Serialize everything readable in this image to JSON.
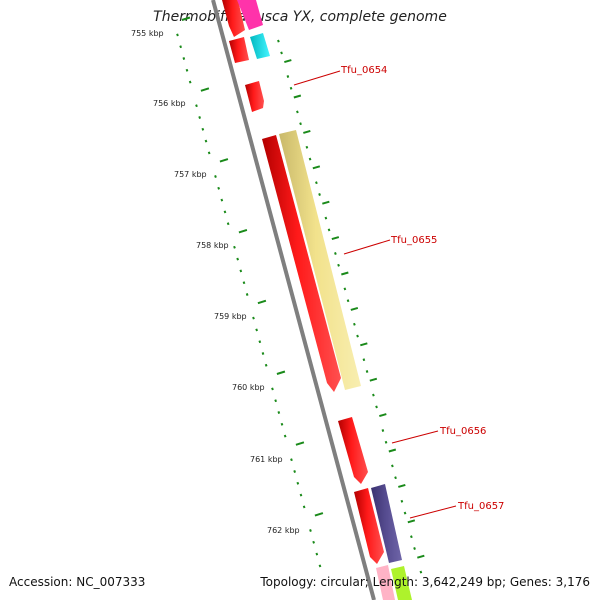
{
  "title": "Thermobifida fusca YX, complete genome",
  "accession": "Accession: NC_007333",
  "topology": "Topology: circular; Length: 3,642,249 bp; Genes: 3,176",
  "colors": {
    "backbone": "#7f7f7f",
    "tick": "#1a8a1a",
    "cds": "#ff1a1a",
    "label": "#cc0000",
    "cyan": "#00e5ee",
    "magenta": "#ff33aa",
    "yellow": "#f2e28c",
    "purple": "#574d91",
    "lime": "#aef22c",
    "pink": "#ffb3c6"
  },
  "ticks": [
    {
      "label": "755 kbp"
    },
    {
      "label": "756 kbp"
    },
    {
      "label": "757 kbp"
    },
    {
      "label": "758 kbp"
    },
    {
      "label": "759 kbp"
    },
    {
      "label": "760 kbp"
    },
    {
      "label": "761 kbp"
    },
    {
      "label": "762 kbp"
    }
  ],
  "genes": [
    {
      "name": "Tfu_0654"
    },
    {
      "name": "Tfu_0655"
    },
    {
      "name": "Tfu_0656"
    },
    {
      "name": "Tfu_0657"
    }
  ]
}
